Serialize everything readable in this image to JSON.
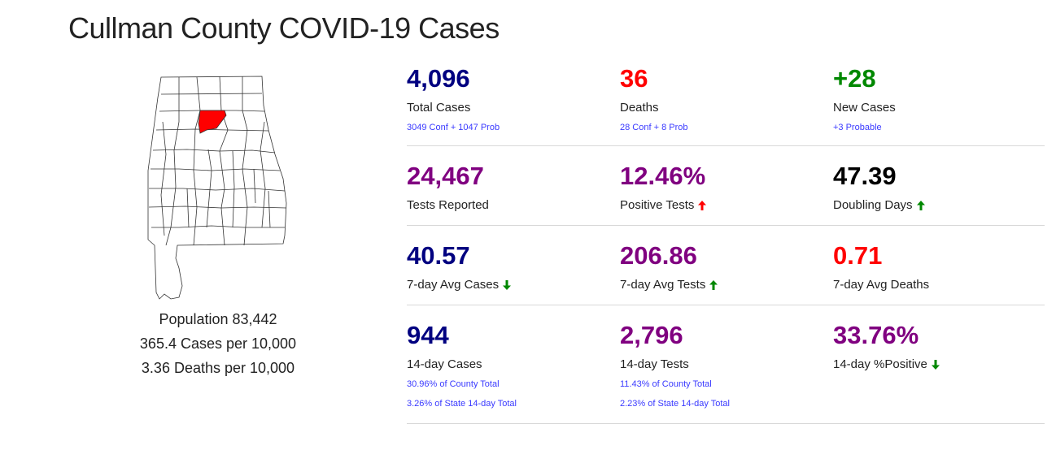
{
  "page": {
    "title": "Cullman County COVID-19 Cases"
  },
  "summary": {
    "population": "Population 83,442",
    "cases_per_10k": "365.4 Cases per 10,000",
    "deaths_per_10k": "3.36 Deaths per 10,000"
  },
  "colors": {
    "navy": "#000080",
    "red": "#ff0000",
    "green": "#008800",
    "purple": "#800080",
    "black": "#000000",
    "link_blue": "#3a3aff",
    "highlight_county": "#ff0000"
  },
  "stats": {
    "total_cases": {
      "value": "4,096",
      "label": "Total Cases",
      "sub": "3049 Conf + 1047 Prob"
    },
    "deaths": {
      "value": "36",
      "label": "Deaths",
      "sub": "28 Conf + 8 Prob"
    },
    "new_cases": {
      "value": "+28",
      "label": "New Cases",
      "sub": "+3 Probable"
    },
    "tests_reported": {
      "value": "24,467",
      "label": "Tests Reported"
    },
    "positive_tests": {
      "value": "12.46%",
      "label": "Positive Tests",
      "trend": "up-red"
    },
    "doubling_days": {
      "value": "47.39",
      "label": "Doubling Days",
      "trend": "up-green"
    },
    "avg_cases_7": {
      "value": "40.57",
      "label": "7-day Avg Cases",
      "trend": "down-green"
    },
    "avg_tests_7": {
      "value": "206.86",
      "label": "7-day Avg Tests",
      "trend": "up-green"
    },
    "avg_deaths_7": {
      "value": "0.71",
      "label": "7-day Avg Deaths"
    },
    "cases_14": {
      "value": "944",
      "label": "14-day Cases",
      "sub": "30.96% of County Total",
      "sub2": "3.26% of State 14-day Total"
    },
    "tests_14": {
      "value": "2,796",
      "label": "14-day Tests",
      "sub": "11.43% of County Total",
      "sub2": "2.23% of State 14-day Total"
    },
    "positive_14": {
      "value": "33.76%",
      "label": "14-day %Positive",
      "trend": "down-green"
    }
  }
}
